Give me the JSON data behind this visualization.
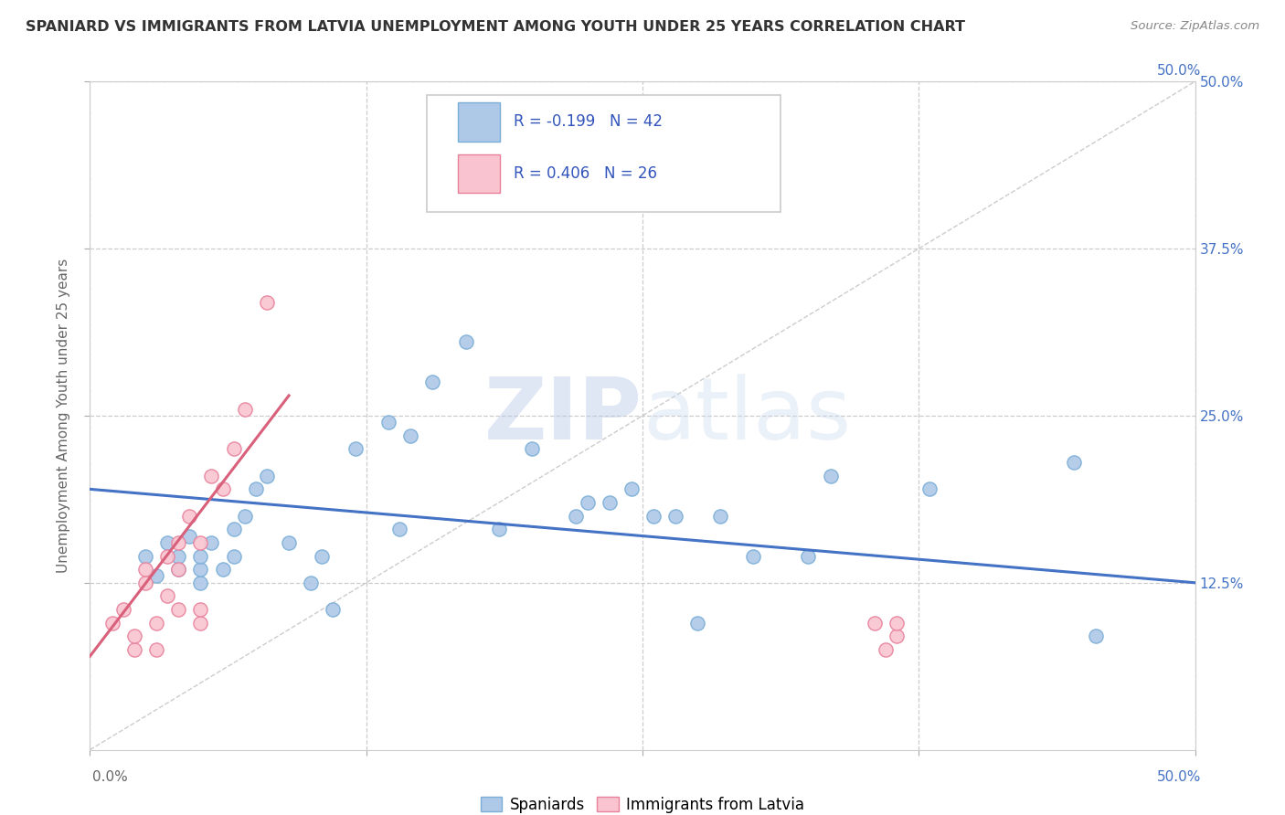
{
  "title": "SPANIARD VS IMMIGRANTS FROM LATVIA UNEMPLOYMENT AMONG YOUTH UNDER 25 YEARS CORRELATION CHART",
  "source": "Source: ZipAtlas.com",
  "ylabel": "Unemployment Among Youth under 25 years",
  "xlim": [
    0.0,
    0.5
  ],
  "ylim": [
    0.0,
    0.5
  ],
  "xtick_values": [
    0.0,
    0.125,
    0.25,
    0.375,
    0.5
  ],
  "ytick_values": [
    0.125,
    0.25,
    0.375,
    0.5
  ],
  "right_ytick_values": [
    0.125,
    0.25,
    0.375,
    0.5
  ],
  "right_ytick_labels": [
    "12.5%",
    "25.0%",
    "37.5%",
    "50.0%"
  ],
  "grid_color": "#cccccc",
  "background_color": "#ffffff",
  "spaniards_R": -0.199,
  "spaniards_N": 42,
  "latvians_R": 0.406,
  "latvians_N": 26,
  "spaniards_color": "#aec8e8",
  "spaniards_edge": "#7aaed6",
  "latvians_color": "#f9c4d0",
  "latvians_edge": "#e8809a",
  "spaniards_x": [
    0.025,
    0.03,
    0.035,
    0.04,
    0.04,
    0.045,
    0.05,
    0.05,
    0.05,
    0.055,
    0.06,
    0.065,
    0.065,
    0.07,
    0.075,
    0.08,
    0.09,
    0.1,
    0.105,
    0.11,
    0.12,
    0.135,
    0.14,
    0.145,
    0.155,
    0.17,
    0.185,
    0.2,
    0.22,
    0.225,
    0.235,
    0.245,
    0.255,
    0.265,
    0.275,
    0.285,
    0.3,
    0.325,
    0.335,
    0.38,
    0.445,
    0.455
  ],
  "spaniards_y": [
    0.145,
    0.13,
    0.155,
    0.135,
    0.145,
    0.16,
    0.125,
    0.135,
    0.145,
    0.155,
    0.135,
    0.145,
    0.165,
    0.175,
    0.195,
    0.205,
    0.155,
    0.125,
    0.145,
    0.105,
    0.225,
    0.245,
    0.165,
    0.235,
    0.275,
    0.305,
    0.165,
    0.225,
    0.175,
    0.185,
    0.185,
    0.195,
    0.175,
    0.175,
    0.095,
    0.175,
    0.145,
    0.145,
    0.205,
    0.195,
    0.215,
    0.085
  ],
  "latvians_x": [
    0.01,
    0.015,
    0.02,
    0.02,
    0.025,
    0.025,
    0.03,
    0.03,
    0.035,
    0.035,
    0.04,
    0.04,
    0.04,
    0.045,
    0.05,
    0.05,
    0.05,
    0.055,
    0.06,
    0.065,
    0.07,
    0.08,
    0.355,
    0.36,
    0.365,
    0.365
  ],
  "latvians_y": [
    0.095,
    0.105,
    0.075,
    0.085,
    0.125,
    0.135,
    0.075,
    0.095,
    0.115,
    0.145,
    0.105,
    0.135,
    0.155,
    0.175,
    0.095,
    0.105,
    0.155,
    0.205,
    0.195,
    0.225,
    0.255,
    0.335,
    0.095,
    0.075,
    0.085,
    0.095
  ],
  "blue_line_x": [
    0.0,
    0.5
  ],
  "blue_line_y": [
    0.195,
    0.125
  ],
  "pink_line_x": [
    0.0,
    0.09
  ],
  "pink_line_y": [
    0.07,
    0.265
  ],
  "legend_R_color": "#3355bb",
  "title_color": "#333333",
  "source_color": "#888888"
}
